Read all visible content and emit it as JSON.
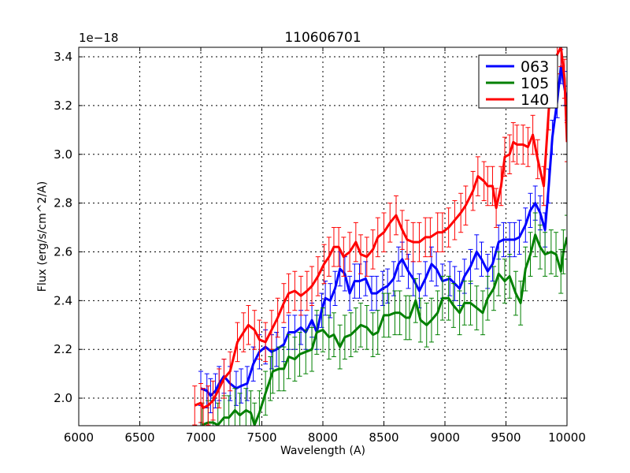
{
  "figure": {
    "title": "110606701",
    "offset_text": "1e−18",
    "xlabel": "Wavelength (A)",
    "ylabel": "Flux (erg/s/cm^2/A)"
  },
  "chart_data": {
    "type": "line",
    "title": "110606701",
    "xlabel": "Wavelength (A)",
    "ylabel": "Flux (erg/s/cm^2/A)",
    "y_scale_note": "1e-18",
    "xlim": [
      6000,
      10000
    ],
    "ylim": [
      1.887,
      3.439
    ],
    "xticks": [
      6000,
      6500,
      7000,
      7500,
      8000,
      8500,
      9000,
      9500,
      10000
    ],
    "xtick_labels": [
      "6000",
      "6500",
      "7000",
      "7500",
      "8000",
      "8500",
      "9000",
      "9500",
      "10000"
    ],
    "yticks": [
      2.0,
      2.2,
      2.4,
      2.6,
      2.8,
      3.0,
      3.2,
      3.4
    ],
    "ytick_labels": [
      "2.0",
      "2.2",
      "2.4",
      "2.6",
      "2.8",
      "3.0",
      "3.2",
      "3.4"
    ],
    "grid": true,
    "legend_position": "upper right",
    "error_bars": true,
    "series": [
      {
        "name": "063",
        "color": "#0000ff",
        "err": 0.07,
        "points": [
          [
            7000,
            2.04
          ],
          [
            7050,
            2.03
          ],
          [
            7080,
            2.01
          ],
          [
            7120,
            2.03
          ],
          [
            7150,
            2.06
          ],
          [
            7190,
            2.09
          ],
          [
            7240,
            2.06
          ],
          [
            7290,
            2.04
          ],
          [
            7330,
            2.05
          ],
          [
            7380,
            2.06
          ],
          [
            7430,
            2.14
          ],
          [
            7480,
            2.19
          ],
          [
            7530,
            2.21
          ],
          [
            7580,
            2.19
          ],
          [
            7620,
            2.2
          ],
          [
            7680,
            2.22
          ],
          [
            7720,
            2.27
          ],
          [
            7770,
            2.27
          ],
          [
            7820,
            2.29
          ],
          [
            7860,
            2.27
          ],
          [
            7910,
            2.32
          ],
          [
            7950,
            2.27
          ],
          [
            7990,
            2.36
          ],
          [
            8020,
            2.41
          ],
          [
            8060,
            2.4
          ],
          [
            8100,
            2.45
          ],
          [
            8140,
            2.53
          ],
          [
            8180,
            2.51
          ],
          [
            8220,
            2.43
          ],
          [
            8260,
            2.48
          ],
          [
            8300,
            2.48
          ],
          [
            8350,
            2.49
          ],
          [
            8400,
            2.43
          ],
          [
            8440,
            2.43
          ],
          [
            8490,
            2.45
          ],
          [
            8530,
            2.46
          ],
          [
            8580,
            2.49
          ],
          [
            8620,
            2.55
          ],
          [
            8650,
            2.57
          ],
          [
            8700,
            2.52
          ],
          [
            8740,
            2.49
          ],
          [
            8790,
            2.44
          ],
          [
            8840,
            2.49
          ],
          [
            8890,
            2.55
          ],
          [
            8930,
            2.53
          ],
          [
            8980,
            2.48
          ],
          [
            9040,
            2.49
          ],
          [
            9080,
            2.47
          ],
          [
            9120,
            2.45
          ],
          [
            9160,
            2.5
          ],
          [
            9210,
            2.54
          ],
          [
            9260,
            2.6
          ],
          [
            9300,
            2.57
          ],
          [
            9350,
            2.52
          ],
          [
            9390,
            2.55
          ],
          [
            9440,
            2.64
          ],
          [
            9480,
            2.65
          ],
          [
            9530,
            2.65
          ],
          [
            9570,
            2.65
          ],
          [
            9610,
            2.66
          ],
          [
            9660,
            2.71
          ],
          [
            9700,
            2.77
          ],
          [
            9740,
            2.8
          ],
          [
            9780,
            2.76
          ],
          [
            9820,
            2.69
          ],
          [
            9850,
            2.87
          ],
          [
            9880,
            3.07
          ],
          [
            9920,
            3.22
          ],
          [
            9950,
            3.36
          ],
          [
            9980,
            3.27
          ],
          [
            10000,
            3.21
          ]
        ]
      },
      {
        "name": "105",
        "color": "#008000",
        "err": 0.09,
        "points": [
          [
            7010,
            1.89
          ],
          [
            7060,
            1.9
          ],
          [
            7100,
            1.9
          ],
          [
            7140,
            1.89
          ],
          [
            7190,
            1.92
          ],
          [
            7230,
            1.92
          ],
          [
            7280,
            1.95
          ],
          [
            7320,
            1.93
          ],
          [
            7370,
            1.95
          ],
          [
            7410,
            1.94
          ],
          [
            7440,
            1.89
          ],
          [
            7480,
            1.94
          ],
          [
            7530,
            2.02
          ],
          [
            7570,
            2.08
          ],
          [
            7590,
            2.11
          ],
          [
            7640,
            2.12
          ],
          [
            7680,
            2.12
          ],
          [
            7720,
            2.17
          ],
          [
            7770,
            2.16
          ],
          [
            7810,
            2.18
          ],
          [
            7860,
            2.19
          ],
          [
            7910,
            2.2
          ],
          [
            7950,
            2.27
          ],
          [
            8000,
            2.28
          ],
          [
            8050,
            2.25
          ],
          [
            8090,
            2.26
          ],
          [
            8140,
            2.21
          ],
          [
            8180,
            2.25
          ],
          [
            8230,
            2.26
          ],
          [
            8270,
            2.28
          ],
          [
            8310,
            2.3
          ],
          [
            8360,
            2.29
          ],
          [
            8410,
            2.26
          ],
          [
            8450,
            2.27
          ],
          [
            8500,
            2.34
          ],
          [
            8540,
            2.34
          ],
          [
            8590,
            2.35
          ],
          [
            8630,
            2.35
          ],
          [
            8680,
            2.33
          ],
          [
            8710,
            2.33
          ],
          [
            8760,
            2.4
          ],
          [
            8800,
            2.32
          ],
          [
            8850,
            2.3
          ],
          [
            8890,
            2.32
          ],
          [
            8940,
            2.35
          ],
          [
            8980,
            2.41
          ],
          [
            9030,
            2.41
          ],
          [
            9070,
            2.38
          ],
          [
            9120,
            2.35
          ],
          [
            9160,
            2.39
          ],
          [
            9210,
            2.39
          ],
          [
            9260,
            2.37
          ],
          [
            9310,
            2.35
          ],
          [
            9350,
            2.41
          ],
          [
            9400,
            2.45
          ],
          [
            9440,
            2.51
          ],
          [
            9490,
            2.48
          ],
          [
            9530,
            2.5
          ],
          [
            9580,
            2.43
          ],
          [
            9620,
            2.39
          ],
          [
            9660,
            2.53
          ],
          [
            9700,
            2.59
          ],
          [
            9740,
            2.67
          ],
          [
            9780,
            2.62
          ],
          [
            9820,
            2.59
          ],
          [
            9870,
            2.6
          ],
          [
            9910,
            2.59
          ],
          [
            9950,
            2.52
          ],
          [
            9970,
            2.6
          ],
          [
            10000,
            2.66
          ]
        ]
      },
      {
        "name": "140",
        "color": "#ff0000",
        "err": 0.08,
        "points": [
          [
            6950,
            1.97
          ],
          [
            7000,
            1.98
          ],
          [
            7020,
            1.96
          ],
          [
            7060,
            1.97
          ],
          [
            7100,
            1.99
          ],
          [
            7150,
            2.04
          ],
          [
            7190,
            2.08
          ],
          [
            7240,
            2.11
          ],
          [
            7300,
            2.23
          ],
          [
            7350,
            2.27
          ],
          [
            7390,
            2.3
          ],
          [
            7440,
            2.28
          ],
          [
            7480,
            2.24
          ],
          [
            7530,
            2.23
          ],
          [
            7580,
            2.28
          ],
          [
            7630,
            2.33
          ],
          [
            7680,
            2.39
          ],
          [
            7720,
            2.43
          ],
          [
            7770,
            2.44
          ],
          [
            7820,
            2.42
          ],
          [
            7870,
            2.44
          ],
          [
            7910,
            2.46
          ],
          [
            7960,
            2.5
          ],
          [
            8010,
            2.55
          ],
          [
            8050,
            2.58
          ],
          [
            8090,
            2.62
          ],
          [
            8130,
            2.62
          ],
          [
            8170,
            2.58
          ],
          [
            8220,
            2.6
          ],
          [
            8270,
            2.64
          ],
          [
            8310,
            2.59
          ],
          [
            8360,
            2.58
          ],
          [
            8410,
            2.61
          ],
          [
            8450,
            2.66
          ],
          [
            8500,
            2.68
          ],
          [
            8550,
            2.72
          ],
          [
            8600,
            2.75
          ],
          [
            8650,
            2.69
          ],
          [
            8690,
            2.65
          ],
          [
            8740,
            2.64
          ],
          [
            8790,
            2.64
          ],
          [
            8840,
            2.66
          ],
          [
            8880,
            2.66
          ],
          [
            8940,
            2.68
          ],
          [
            8980,
            2.68
          ],
          [
            9030,
            2.7
          ],
          [
            9080,
            2.73
          ],
          [
            9130,
            2.76
          ],
          [
            9170,
            2.79
          ],
          [
            9230,
            2.85
          ],
          [
            9270,
            2.91
          ],
          [
            9320,
            2.89
          ],
          [
            9350,
            2.87
          ],
          [
            9390,
            2.87
          ],
          [
            9420,
            2.78
          ],
          [
            9460,
            2.87
          ],
          [
            9490,
            2.99
          ],
          [
            9530,
            3.0
          ],
          [
            9560,
            3.05
          ],
          [
            9590,
            3.04
          ],
          [
            9640,
            3.04
          ],
          [
            9680,
            3.03
          ],
          [
            9720,
            3.08
          ],
          [
            9760,
            2.98
          ],
          [
            9810,
            2.87
          ],
          [
            9850,
            3.18
          ],
          [
            9880,
            3.31
          ],
          [
            9920,
            3.41
          ],
          [
            9950,
            3.44
          ],
          [
            9980,
            3.31
          ],
          [
            10000,
            3.05
          ]
        ]
      }
    ]
  }
}
